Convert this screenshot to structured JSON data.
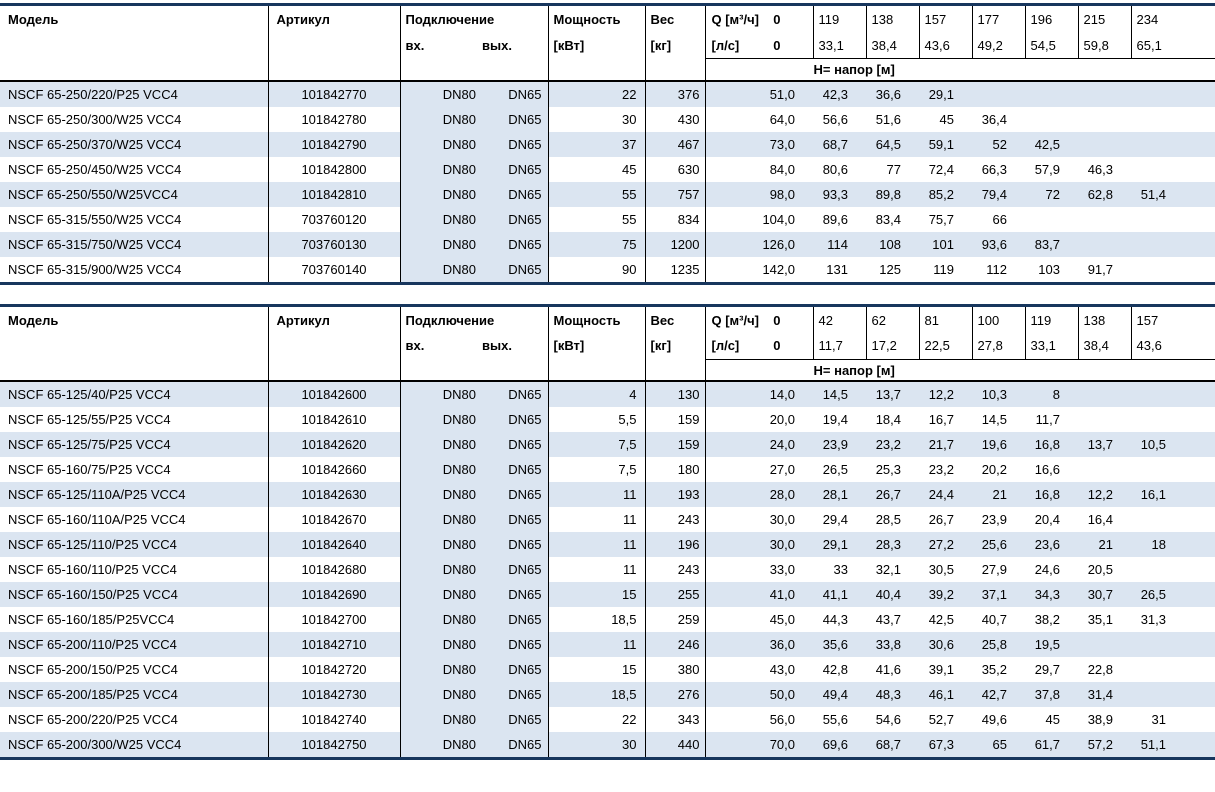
{
  "colors": {
    "row_stripe": "#dbe5f1",
    "frame_line": "#17365d",
    "grid_line": "#000000"
  },
  "tables": [
    {
      "headers": {
        "model": "Модель",
        "article": "Артикул",
        "connection": "Подключение",
        "inlet": "вх.",
        "outlet": "вых.",
        "power_line1": "Мощность",
        "power_line2": "[кВт]",
        "weight_line1": "Вес",
        "weight_line2": "[кг]",
        "q_label": "Q [м³/ч]",
        "q_zero": "0",
        "ls_label": "[л/с]",
        "ls_zero": "0",
        "head_label": "Н= напор [м]",
        "q_values": [
          "119",
          "138",
          "157",
          "177",
          "196",
          "215",
          "234"
        ],
        "ls_values": [
          "33,1",
          "38,4",
          "43,6",
          "49,2",
          "54,5",
          "59,8",
          "65,1"
        ]
      },
      "rows": [
        {
          "model": "NSCF 65-250/220/P25 VCC4",
          "article": "101842770",
          "inlet": "DN80",
          "outlet": "DN65",
          "power": "22",
          "weight": "376",
          "h": [
            "51,0",
            "42,3",
            "36,6",
            "29,1",
            "",
            "",
            "",
            ""
          ]
        },
        {
          "model": "NSCF 65-250/300/W25 VCC4",
          "article": "101842780",
          "inlet": "DN80",
          "outlet": "DN65",
          "power": "30",
          "weight": "430",
          "h": [
            "64,0",
            "56,6",
            "51,6",
            "45",
            "36,4",
            "",
            "",
            ""
          ]
        },
        {
          "model": "NSCF 65-250/370/W25 VCC4",
          "article": "101842790",
          "inlet": "DN80",
          "outlet": "DN65",
          "power": "37",
          "weight": "467",
          "h": [
            "73,0",
            "68,7",
            "64,5",
            "59,1",
            "52",
            "42,5",
            "",
            ""
          ]
        },
        {
          "model": "NSCF 65-250/450/W25 VCC4",
          "article": "101842800",
          "inlet": "DN80",
          "outlet": "DN65",
          "power": "45",
          "weight": "630",
          "h": [
            "84,0",
            "80,6",
            "77",
            "72,4",
            "66,3",
            "57,9",
            "46,3",
            ""
          ]
        },
        {
          "model": "NSCF 65-250/550/W25VCC4",
          "article": "101842810",
          "inlet": "DN80",
          "outlet": "DN65",
          "power": "55",
          "weight": "757",
          "h": [
            "98,0",
            "93,3",
            "89,8",
            "85,2",
            "79,4",
            "72",
            "62,8",
            "51,4"
          ]
        },
        {
          "model": "NSCF 65-315/550/W25 VCC4",
          "article": "703760120",
          "inlet": "DN80",
          "outlet": "DN65",
          "power": "55",
          "weight": "834",
          "h": [
            "104,0",
            "89,6",
            "83,4",
            "75,7",
            "66",
            "",
            "",
            ""
          ]
        },
        {
          "model": "NSCF 65-315/750/W25 VCC4",
          "article": "703760130",
          "inlet": "DN80",
          "outlet": "DN65",
          "power": "75",
          "weight": "1200",
          "h": [
            "126,0",
            "114",
            "108",
            "101",
            "93,6",
            "83,7",
            "",
            ""
          ]
        },
        {
          "model": "NSCF 65-315/900/W25 VCC4",
          "article": "703760140",
          "inlet": "DN80",
          "outlet": "DN65",
          "power": "90",
          "weight": "1235",
          "h": [
            "142,0",
            "131",
            "125",
            "119",
            "112",
            "103",
            "91,7",
            ""
          ]
        }
      ]
    },
    {
      "headers": {
        "model": "Модель",
        "article": "Артикул",
        "connection": "Подключение",
        "inlet": "вх.",
        "outlet": "вых.",
        "power_line1": "Мощность",
        "power_line2": "[кВт]",
        "weight_line1": "Вес",
        "weight_line2": "[кг]",
        "q_label": "Q [м³/ч]",
        "q_zero": "0",
        "ls_label": "[л/с]",
        "ls_zero": "0",
        "head_label": "Н= напор [м]",
        "q_values": [
          "42",
          "62",
          "81",
          "100",
          "119",
          "138",
          "157"
        ],
        "ls_values": [
          "11,7",
          "17,2",
          "22,5",
          "27,8",
          "33,1",
          "38,4",
          "43,6"
        ]
      },
      "rows": [
        {
          "model": "NSCF 65-125/40/P25 VCC4",
          "article": "101842600",
          "inlet": "DN80",
          "outlet": "DN65",
          "power": "4",
          "weight": "130",
          "h": [
            "14,0",
            "14,5",
            "13,7",
            "12,2",
            "10,3",
            "8",
            "",
            ""
          ]
        },
        {
          "model": "NSCF 65-125/55/P25 VCC4",
          "article": "101842610",
          "inlet": "DN80",
          "outlet": "DN65",
          "power": "5,5",
          "weight": "159",
          "h": [
            "20,0",
            "19,4",
            "18,4",
            "16,7",
            "14,5",
            "11,7",
            "",
            ""
          ]
        },
        {
          "model": "NSCF 65-125/75/P25 VCC4",
          "article": "101842620",
          "inlet": "DN80",
          "outlet": "DN65",
          "power": "7,5",
          "weight": "159",
          "h": [
            "24,0",
            "23,9",
            "23,2",
            "21,7",
            "19,6",
            "16,8",
            "13,7",
            "10,5"
          ]
        },
        {
          "model": "NSCF 65-160/75/P25 VCC4",
          "article": "101842660",
          "inlet": "DN80",
          "outlet": "DN65",
          "power": "7,5",
          "weight": "180",
          "h": [
            "27,0",
            "26,5",
            "25,3",
            "23,2",
            "20,2",
            "16,6",
            "",
            ""
          ]
        },
        {
          "model": "NSCF 65-125/110A/P25 VCC4",
          "article": "101842630",
          "inlet": "DN80",
          "outlet": "DN65",
          "power": "11",
          "weight": "193",
          "h": [
            "28,0",
            "28,1",
            "26,7",
            "24,4",
            "21",
            "16,8",
            "12,2",
            "16,1"
          ]
        },
        {
          "model": "NSCF 65-160/110A/P25 VCC4",
          "article": "101842670",
          "inlet": "DN80",
          "outlet": "DN65",
          "power": "11",
          "weight": "243",
          "h": [
            "30,0",
            "29,4",
            "28,5",
            "26,7",
            "23,9",
            "20,4",
            "16,4",
            ""
          ]
        },
        {
          "model": "NSCF 65-125/110/P25 VCC4",
          "article": "101842640",
          "inlet": "DN80",
          "outlet": "DN65",
          "power": "11",
          "weight": "196",
          "h": [
            "30,0",
            "29,1",
            "28,3",
            "27,2",
            "25,6",
            "23,6",
            "21",
            "18"
          ]
        },
        {
          "model": "NSCF 65-160/110/P25 VCC4",
          "article": "101842680",
          "inlet": "DN80",
          "outlet": "DN65",
          "power": "11",
          "weight": "243",
          "h": [
            "33,0",
            "33",
            "32,1",
            "30,5",
            "27,9",
            "24,6",
            "20,5",
            ""
          ]
        },
        {
          "model": "NSCF 65-160/150/P25 VCC4",
          "article": "101842690",
          "inlet": "DN80",
          "outlet": "DN65",
          "power": "15",
          "weight": "255",
          "h": [
            "41,0",
            "41,1",
            "40,4",
            "39,2",
            "37,1",
            "34,3",
            "30,7",
            "26,5"
          ]
        },
        {
          "model": "NSCF 65-160/185/P25VCC4",
          "article": "101842700",
          "inlet": "DN80",
          "outlet": "DN65",
          "power": "18,5",
          "weight": "259",
          "h": [
            "45,0",
            "44,3",
            "43,7",
            "42,5",
            "40,7",
            "38,2",
            "35,1",
            "31,3"
          ]
        },
        {
          "model": "NSCF 65-200/110/P25 VCC4",
          "article": "101842710",
          "inlet": "DN80",
          "outlet": "DN65",
          "power": "11",
          "weight": "246",
          "h": [
            "36,0",
            "35,6",
            "33,8",
            "30,6",
            "25,8",
            "19,5",
            "",
            ""
          ]
        },
        {
          "model": "NSCF 65-200/150/P25 VCC4",
          "article": "101842720",
          "inlet": "DN80",
          "outlet": "DN65",
          "power": "15",
          "weight": "380",
          "h": [
            "43,0",
            "42,8",
            "41,6",
            "39,1",
            "35,2",
            "29,7",
            "22,8",
            ""
          ]
        },
        {
          "model": "NSCF 65-200/185/P25 VCC4",
          "article": "101842730",
          "inlet": "DN80",
          "outlet": "DN65",
          "power": "18,5",
          "weight": "276",
          "h": [
            "50,0",
            "49,4",
            "48,3",
            "46,1",
            "42,7",
            "37,8",
            "31,4",
            ""
          ]
        },
        {
          "model": "NSCF 65-200/220/P25 VCC4",
          "article": "101842740",
          "inlet": "DN80",
          "outlet": "DN65",
          "power": "22",
          "weight": "343",
          "h": [
            "56,0",
            "55,6",
            "54,6",
            "52,7",
            "49,6",
            "45",
            "38,9",
            "31"
          ]
        },
        {
          "model": "NSCF 65-200/300/W25 VCC4",
          "article": "101842750",
          "inlet": "DN80",
          "outlet": "DN65",
          "power": "30",
          "weight": "440",
          "h": [
            "70,0",
            "69,6",
            "68,7",
            "67,3",
            "65",
            "61,7",
            "57,2",
            "51,1"
          ]
        }
      ]
    }
  ]
}
